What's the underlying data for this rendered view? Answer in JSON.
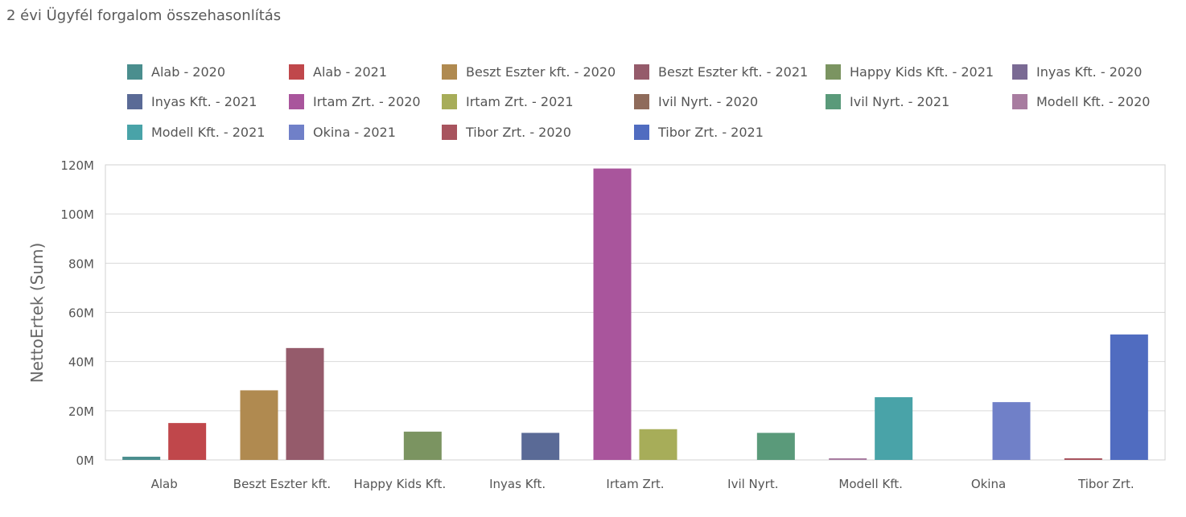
{
  "chart_data": {
    "type": "bar",
    "title": "2 évi Ügyfél forgalom összehasonlítás",
    "xlabel": "",
    "ylabel": "NettoErtek (Sum)",
    "ylim": [
      0,
      120000000
    ],
    "yticks": [
      {
        "value": 0,
        "label": "0M"
      },
      {
        "value": 20000000,
        "label": "20M"
      },
      {
        "value": 40000000,
        "label": "40M"
      },
      {
        "value": 60000000,
        "label": "60M"
      },
      {
        "value": 80000000,
        "label": "80M"
      },
      {
        "value": 100000000,
        "label": "100M"
      },
      {
        "value": 120000000,
        "label": "120M"
      }
    ],
    "grid": true,
    "legend_position": "top",
    "categories": [
      "Alab",
      "Beszt Eszter kft.",
      "Happy Kids Kft.",
      "Inyas Kft.",
      "Irtam Zrt.",
      "Ivil Nyrt.",
      "Modell Kft.",
      "Okina",
      "Tibor Zrt."
    ],
    "series": [
      {
        "name": "Alab - 2020",
        "color": "#4a8e8e",
        "category": "Alab",
        "slot": 0,
        "value": 1300000
      },
      {
        "name": "Alab - 2021",
        "color": "#c0474b",
        "category": "Alab",
        "slot": 1,
        "value": 15000000
      },
      {
        "name": "Beszt Eszter kft. - 2020",
        "color": "#b08a50",
        "category": "Beszt Eszter kft.",
        "slot": 0,
        "value": 28300000
      },
      {
        "name": "Beszt Eszter kft. - 2021",
        "color": "#955b6b",
        "category": "Beszt Eszter kft.",
        "slot": 1,
        "value": 45500000
      },
      {
        "name": "Happy Kids Kft. - 2021",
        "color": "#7b9461",
        "category": "Happy Kids Kft.",
        "slot": 1,
        "value": 11500000
      },
      {
        "name": "Inyas Kft. - 2020",
        "color": "#7a6a94",
        "category": "Inyas Kft.",
        "slot": 0,
        "value": 0
      },
      {
        "name": "Inyas Kft. - 2021",
        "color": "#5a6a96",
        "category": "Inyas Kft.",
        "slot": 1,
        "value": 11000000
      },
      {
        "name": "Irtam Zrt. - 2020",
        "color": "#a9559c",
        "category": "Irtam Zrt.",
        "slot": 0,
        "value": 118500000
      },
      {
        "name": "Irtam Zrt. - 2021",
        "color": "#a7ad59",
        "category": "Irtam Zrt.",
        "slot": 1,
        "value": 12500000
      },
      {
        "name": "Ivil Nyrt. - 2020",
        "color": "#8f6b5b",
        "category": "Ivil Nyrt.",
        "slot": 0,
        "value": 0
      },
      {
        "name": "Ivil Nyrt. - 2021",
        "color": "#5a9a7a",
        "category": "Ivil Nyrt.",
        "slot": 1,
        "value": 11000000
      },
      {
        "name": "Modell Kft. - 2020",
        "color": "#a87ca0",
        "category": "Modell Kft.",
        "slot": 0,
        "value": 600000
      },
      {
        "name": "Modell Kft. - 2021",
        "color": "#49a3a8",
        "category": "Modell Kft.",
        "slot": 1,
        "value": 25500000
      },
      {
        "name": "Okina - 2021",
        "color": "#7080c8",
        "category": "Okina",
        "slot": 1,
        "value": 23500000
      },
      {
        "name": "Tibor Zrt. - 2020",
        "color": "#a8545e",
        "category": "Tibor Zrt.",
        "slot": 0,
        "value": 600000
      },
      {
        "name": "Tibor Zrt. - 2021",
        "color": "#506cc0",
        "category": "Tibor Zrt.",
        "slot": 1,
        "value": 51000000
      }
    ]
  }
}
